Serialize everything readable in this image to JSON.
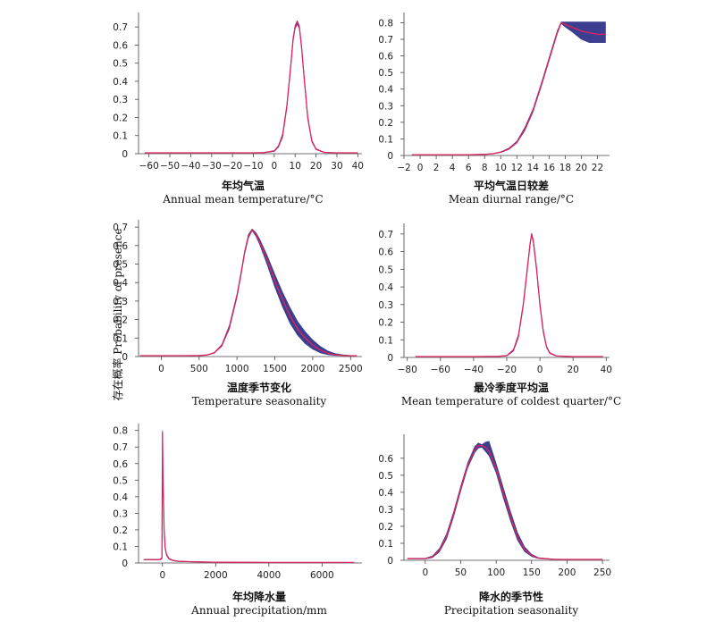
{
  "y_axis_label": "存在概率 Probability of presence",
  "colors": {
    "band": "#3c3f8f",
    "curve": "#e0245e",
    "axis": "#444444"
  },
  "chart_data": [
    {
      "type": "line",
      "xlabel_cn": "年均气温",
      "xlabel_en": "Annual mean temperature/°C",
      "xticks": [
        -60,
        -50,
        -40,
        -30,
        -20,
        -10,
        0,
        10,
        20,
        30,
        40
      ],
      "yticks": [
        0,
        0.1,
        0.2,
        0.3,
        0.4,
        0.5,
        0.6,
        0.7
      ],
      "xlim": [
        -65,
        42
      ],
      "ylim": [
        0,
        0.76
      ],
      "series": [
        {
          "x": [
            -62,
            -20,
            -10,
            -5,
            0,
            2,
            4,
            6,
            8,
            9,
            10,
            11,
            12,
            13,
            14,
            16,
            18,
            20,
            24,
            30,
            40
          ],
          "y": [
            0.005,
            0.005,
            0.005,
            0.006,
            0.015,
            0.04,
            0.1,
            0.26,
            0.5,
            0.63,
            0.7,
            0.725,
            0.7,
            0.6,
            0.46,
            0.2,
            0.07,
            0.025,
            0.007,
            0.005,
            0.005
          ],
          "upper": [
            0.005,
            0.005,
            0.005,
            0.007,
            0.018,
            0.045,
            0.11,
            0.27,
            0.51,
            0.64,
            0.71,
            0.735,
            0.71,
            0.61,
            0.47,
            0.21,
            0.075,
            0.028,
            0.008,
            0.006,
            0.005
          ],
          "lower": [
            0.005,
            0.005,
            0.005,
            0.005,
            0.012,
            0.035,
            0.09,
            0.25,
            0.49,
            0.62,
            0.69,
            0.715,
            0.69,
            0.59,
            0.45,
            0.19,
            0.065,
            0.022,
            0.006,
            0.005,
            0.005
          ]
        }
      ]
    },
    {
      "type": "line",
      "xlabel_cn": "平均气温日较差",
      "xlabel_en": "Mean diurnal range/°C",
      "xticks": [
        -2,
        0,
        2,
        4,
        6,
        8,
        10,
        12,
        14,
        16,
        18,
        20,
        22
      ],
      "yticks": [
        0,
        0.1,
        0.2,
        0.3,
        0.4,
        0.5,
        0.6,
        0.7,
        0.8
      ],
      "xlim": [
        -2,
        23.5
      ],
      "ylim": [
        0,
        0.84
      ],
      "series": [
        {
          "x": [
            -1,
            0,
            2,
            4,
            6,
            8,
            9,
            10,
            11,
            12,
            13,
            14,
            15,
            16,
            17,
            17.5,
            18,
            19,
            20,
            21,
            22,
            23
          ],
          "y": [
            0.005,
            0.005,
            0.005,
            0.005,
            0.005,
            0.007,
            0.01,
            0.02,
            0.04,
            0.08,
            0.16,
            0.27,
            0.42,
            0.58,
            0.74,
            0.8,
            0.79,
            0.77,
            0.75,
            0.74,
            0.73,
            0.73
          ],
          "upper": [
            0.005,
            0.005,
            0.005,
            0.005,
            0.005,
            0.008,
            0.012,
            0.022,
            0.044,
            0.086,
            0.17,
            0.28,
            0.43,
            0.59,
            0.75,
            0.805,
            0.805,
            0.805,
            0.805,
            0.805,
            0.805,
            0.805
          ],
          "lower": [
            0.005,
            0.005,
            0.005,
            0.005,
            0.005,
            0.006,
            0.009,
            0.018,
            0.036,
            0.075,
            0.15,
            0.26,
            0.41,
            0.57,
            0.73,
            0.795,
            0.775,
            0.74,
            0.7,
            0.68,
            0.68,
            0.68
          ]
        }
      ]
    },
    {
      "type": "line",
      "xlabel_cn": "温度季节变化",
      "xlabel_en": "Temperature seasonality",
      "xticks": [
        0,
        500,
        1000,
        1500,
        2000,
        2500
      ],
      "yticks": [
        0,
        0.1,
        0.2,
        0.3,
        0.4,
        0.5,
        0.6,
        0.7
      ],
      "xlim": [
        -300,
        2650
      ],
      "ylim": [
        0,
        0.72
      ],
      "series": [
        {
          "x": [
            -280,
            0,
            300,
            500,
            600,
            700,
            800,
            900,
            1000,
            1050,
            1100,
            1150,
            1200,
            1250,
            1300,
            1400,
            1500,
            1600,
            1700,
            1800,
            1900,
            2000,
            2100,
            2200,
            2300,
            2400,
            2500,
            2580
          ],
          "y": [
            0.005,
            0.005,
            0.005,
            0.006,
            0.008,
            0.02,
            0.06,
            0.16,
            0.33,
            0.44,
            0.56,
            0.65,
            0.685,
            0.66,
            0.62,
            0.52,
            0.41,
            0.31,
            0.22,
            0.15,
            0.1,
            0.062,
            0.035,
            0.018,
            0.01,
            0.006,
            0.005,
            0.005
          ],
          "upper": [
            0.005,
            0.005,
            0.005,
            0.006,
            0.009,
            0.022,
            0.065,
            0.17,
            0.34,
            0.45,
            0.57,
            0.66,
            0.69,
            0.67,
            0.635,
            0.545,
            0.445,
            0.35,
            0.265,
            0.19,
            0.135,
            0.09,
            0.055,
            0.03,
            0.016,
            0.009,
            0.006,
            0.005
          ],
          "lower": [
            0.005,
            0.005,
            0.005,
            0.005,
            0.007,
            0.018,
            0.055,
            0.15,
            0.32,
            0.43,
            0.55,
            0.64,
            0.68,
            0.65,
            0.605,
            0.495,
            0.375,
            0.27,
            0.18,
            0.115,
            0.07,
            0.04,
            0.02,
            0.01,
            0.006,
            0.005,
            0.005,
            0.005
          ]
        }
      ]
    },
    {
      "type": "line",
      "xlabel_cn": "最冷季度平均温",
      "xlabel_en": "Mean temperature of coldest quarter/°C",
      "xticks": [
        -80,
        -60,
        -40,
        -20,
        0,
        20,
        40
      ],
      "yticks": [
        0,
        0.1,
        0.2,
        0.3,
        0.4,
        0.5,
        0.6,
        0.7
      ],
      "xlim": [
        -82,
        42
      ],
      "ylim": [
        0,
        0.74
      ],
      "series": [
        {
          "x": [
            -75,
            -40,
            -25,
            -20,
            -16,
            -13,
            -10,
            -8,
            -6,
            -5,
            -4,
            -2,
            0,
            2,
            4,
            6,
            10,
            20,
            38
          ],
          "y": [
            0.005,
            0.005,
            0.006,
            0.01,
            0.04,
            0.12,
            0.3,
            0.47,
            0.64,
            0.7,
            0.66,
            0.5,
            0.3,
            0.15,
            0.06,
            0.025,
            0.008,
            0.005,
            0.005
          ],
          "upper": [
            0.005,
            0.005,
            0.007,
            0.012,
            0.045,
            0.13,
            0.31,
            0.48,
            0.65,
            0.705,
            0.67,
            0.51,
            0.31,
            0.16,
            0.065,
            0.028,
            0.009,
            0.005,
            0.005
          ],
          "lower": [
            0.005,
            0.005,
            0.005,
            0.008,
            0.035,
            0.11,
            0.29,
            0.46,
            0.63,
            0.695,
            0.65,
            0.49,
            0.29,
            0.14,
            0.055,
            0.022,
            0.007,
            0.005,
            0.005
          ]
        }
      ]
    },
    {
      "type": "line",
      "xlabel_cn": "年均降水量",
      "xlabel_en": "Annual precipitation/mm",
      "xticks": [
        0,
        2000,
        4000,
        6000
      ],
      "yticks": [
        0,
        0.1,
        0.2,
        0.3,
        0.4,
        0.5,
        0.6,
        0.7,
        0.8
      ],
      "xlim": [
        -900,
        7500
      ],
      "ylim": [
        0,
        0.82
      ],
      "series": [
        {
          "x": [
            -700,
            -100,
            -20,
            0,
            20,
            60,
            100,
            150,
            250,
            400,
            600,
            1000,
            2000,
            4000,
            7200
          ],
          "y": [
            0.02,
            0.02,
            0.03,
            0.79,
            0.5,
            0.2,
            0.09,
            0.05,
            0.025,
            0.015,
            0.01,
            0.008,
            0.005,
            0.003,
            0.003
          ],
          "upper": [
            0.022,
            0.022,
            0.035,
            0.8,
            0.51,
            0.21,
            0.095,
            0.055,
            0.028,
            0.017,
            0.012,
            0.009,
            0.006,
            0.004,
            0.004
          ],
          "lower": [
            0.018,
            0.018,
            0.025,
            0.78,
            0.49,
            0.19,
            0.085,
            0.045,
            0.022,
            0.013,
            0.008,
            0.007,
            0.004,
            0.002,
            0.002
          ]
        }
      ]
    },
    {
      "type": "line",
      "xlabel_cn": "降水的季节性",
      "xlabel_en": "Precipitation seasonality",
      "xticks": [
        0,
        50,
        100,
        150,
        200,
        250
      ],
      "yticks": [
        0,
        0.1,
        0.2,
        0.3,
        0.4,
        0.5,
        0.6
      ],
      "xlim": [
        -30,
        260
      ],
      "ylim": [
        0,
        0.72
      ],
      "series": [
        {
          "x": [
            -25,
            0,
            10,
            20,
            30,
            40,
            50,
            60,
            70,
            75,
            80,
            85,
            90,
            100,
            110,
            120,
            130,
            140,
            150,
            160,
            180,
            200,
            250
          ],
          "y": [
            0.01,
            0.01,
            0.02,
            0.06,
            0.14,
            0.27,
            0.42,
            0.56,
            0.65,
            0.675,
            0.675,
            0.665,
            0.64,
            0.54,
            0.4,
            0.26,
            0.14,
            0.065,
            0.028,
            0.012,
            0.006,
            0.005,
            0.005
          ],
          "upper": [
            0.012,
            0.012,
            0.025,
            0.07,
            0.155,
            0.285,
            0.435,
            0.575,
            0.67,
            0.69,
            0.68,
            0.695,
            0.7,
            0.57,
            0.43,
            0.29,
            0.165,
            0.08,
            0.035,
            0.015,
            0.008,
            0.006,
            0.006
          ],
          "lower": [
            0.008,
            0.008,
            0.015,
            0.05,
            0.125,
            0.255,
            0.405,
            0.545,
            0.635,
            0.66,
            0.665,
            0.64,
            0.615,
            0.515,
            0.37,
            0.235,
            0.12,
            0.052,
            0.022,
            0.01,
            0.005,
            0.004,
            0.004
          ]
        }
      ]
    }
  ]
}
